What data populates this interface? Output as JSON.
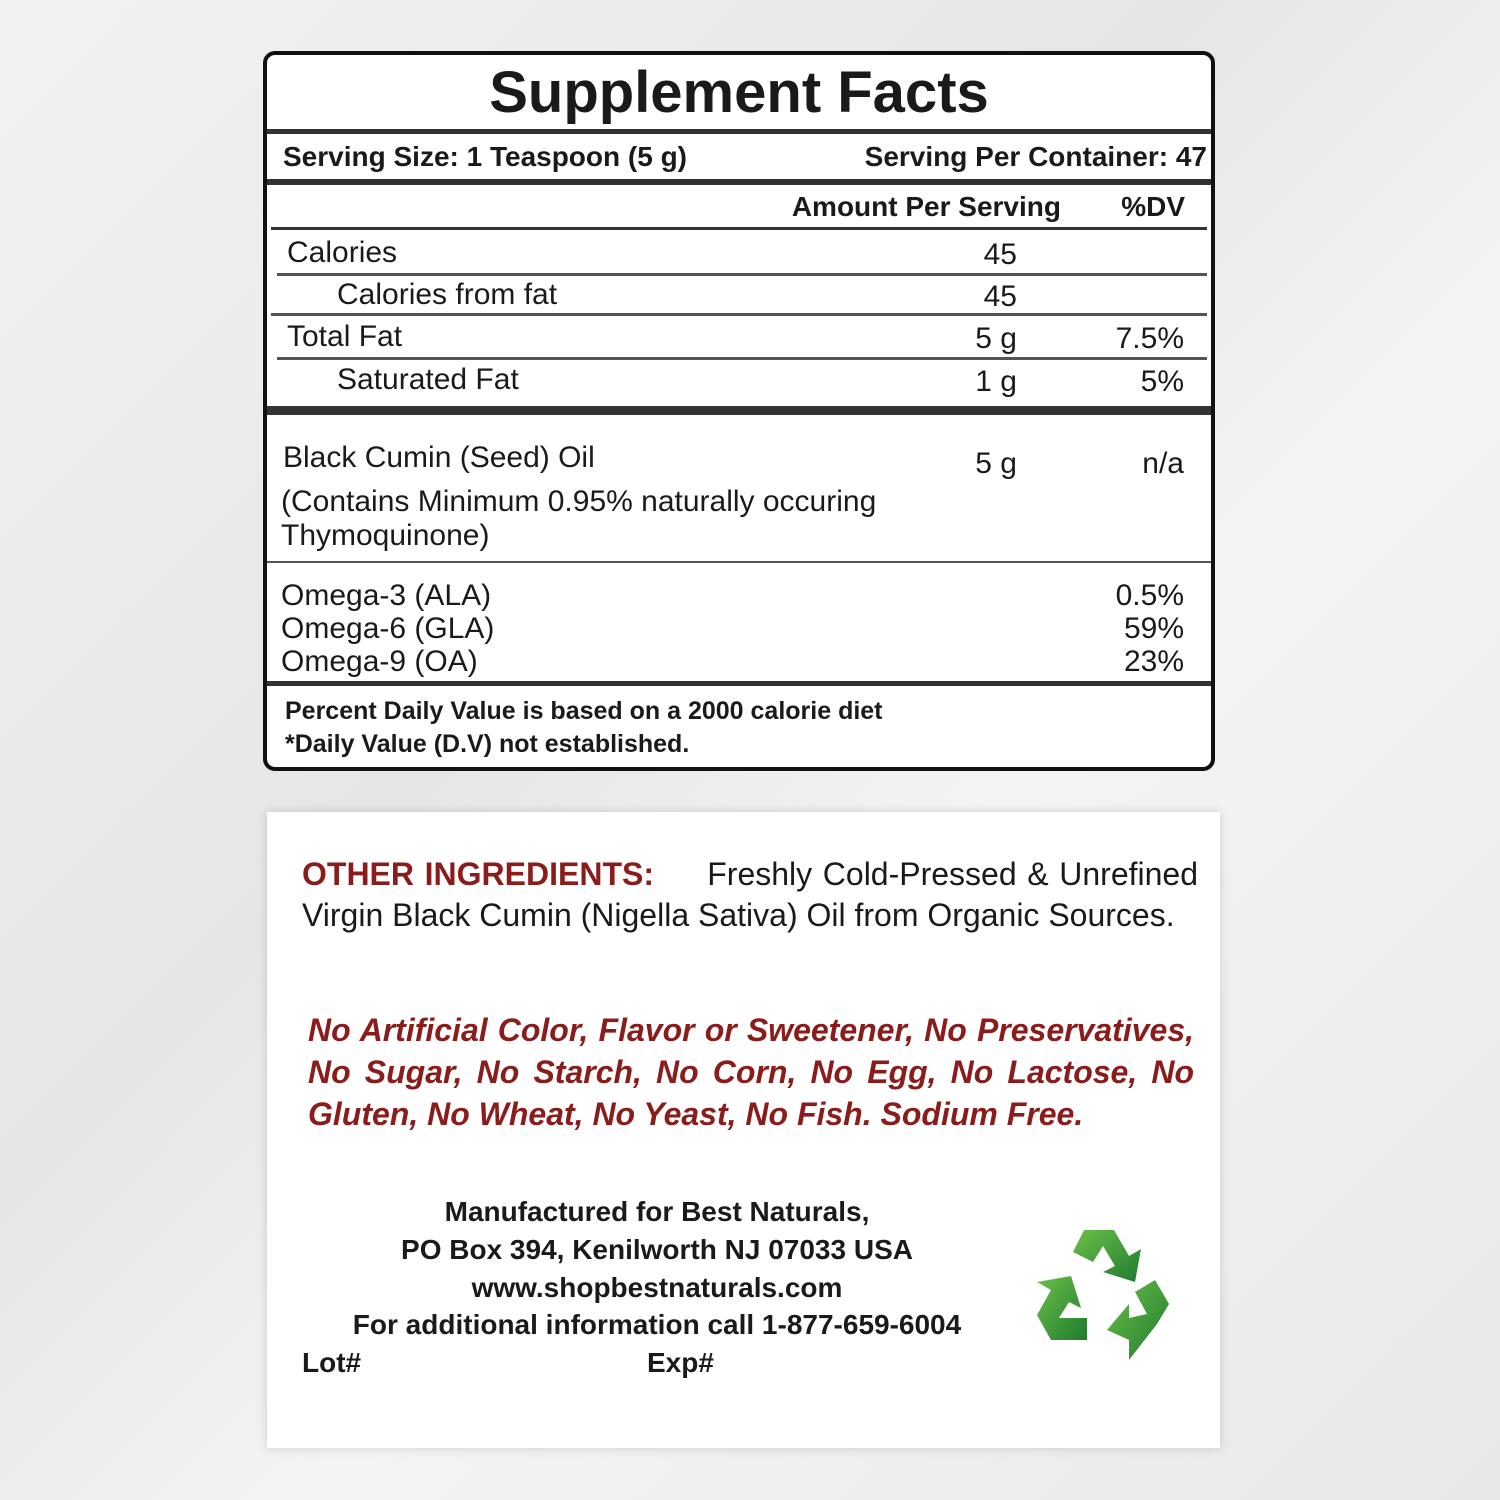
{
  "supplement_facts": {
    "title": "Supplement Facts",
    "serving_size": "Serving Size: 1 Teaspoon (5 g)",
    "servings_per_container": "Serving Per Container: 47",
    "columns": [
      "Amount Per Serving",
      "%DV"
    ],
    "rows": [
      {
        "name": "Calories",
        "amount": "45"
      },
      {
        "name": "Calories from fat",
        "amount": "45"
      },
      {
        "name": "Total Fat",
        "amount": "5 g",
        "dv": "7.5%"
      },
      {
        "name": "Saturated Fat",
        "amount": "1 g",
        "dv": "5%"
      }
    ],
    "ingredient": {
      "name": "Black Cumin (Seed) Oil",
      "amount": "5 g",
      "dv": "n/a",
      "note": [
        "(Contains Minimum 0.95% naturally occuring",
        "Thymoquinone)"
      ]
    },
    "fatty_acids": [
      {
        "name": "Omega-3 (ALA)",
        "dv": "0.5%"
      },
      {
        "name": "Omega-6 (GLA)",
        "dv": "59%"
      },
      {
        "name": "Omega-9 (OA)",
        "dv": "23%"
      }
    ],
    "footnotes": [
      "Percent Daily Value is based on a 2000 calorie diet",
      "*Daily Value (D.V) not established."
    ]
  },
  "other_ingredients": {
    "label": "OTHER INGREDIENTS:",
    "text": "Freshly Cold-Pressed & Unrefined Virgin Black Cumin (Nigella Sativa) Oil from Organic Sources."
  },
  "claims": "No Artificial Color, Flavor or Sweetener, No Preservatives, No Sugar, No Starch, No Corn, No Egg, No Lactose, No Gluten, No Wheat, No Yeast, No Fish. Sodium Free.",
  "manufacturer": [
    "Manufactured for Best Naturals,",
    "PO Box 394, Kenilworth NJ 07033 USA",
    "www.shopbestnaturals.com",
    "For additional information call 1-877-659-6004"
  ],
  "lot": "Lot#",
  "exp": "Exp#"
}
